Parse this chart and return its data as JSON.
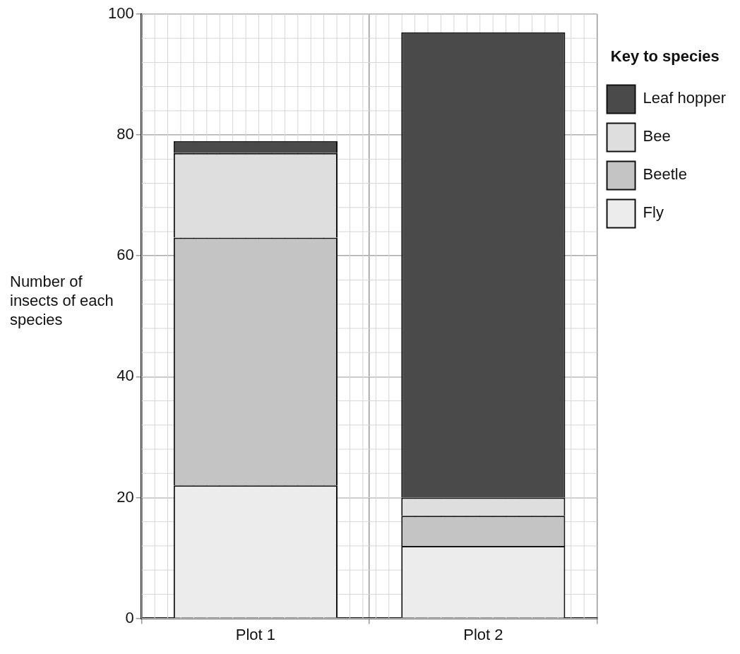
{
  "chart_data": {
    "type": "bar",
    "stacked": true,
    "categories": [
      "Plot 1",
      "Plot 2"
    ],
    "ylabel": "Number of insects of each species",
    "legend_title": "Key to species",
    "series": [
      {
        "name": "Fly",
        "color": "#ececec",
        "values": [
          22,
          12
        ]
      },
      {
        "name": "Beetle",
        "color": "#c4c4c4",
        "values": [
          41,
          5
        ]
      },
      {
        "name": "Bee",
        "color": "#dedede",
        "values": [
          14,
          3
        ]
      },
      {
        "name": "Leaf hopper",
        "color": "#4a4a4a",
        "values": [
          2,
          77
        ]
      }
    ],
    "ylim": [
      0,
      100
    ],
    "yticks": [
      0,
      20,
      40,
      60,
      80,
      100
    ],
    "grid": true,
    "legend": "top right"
  }
}
